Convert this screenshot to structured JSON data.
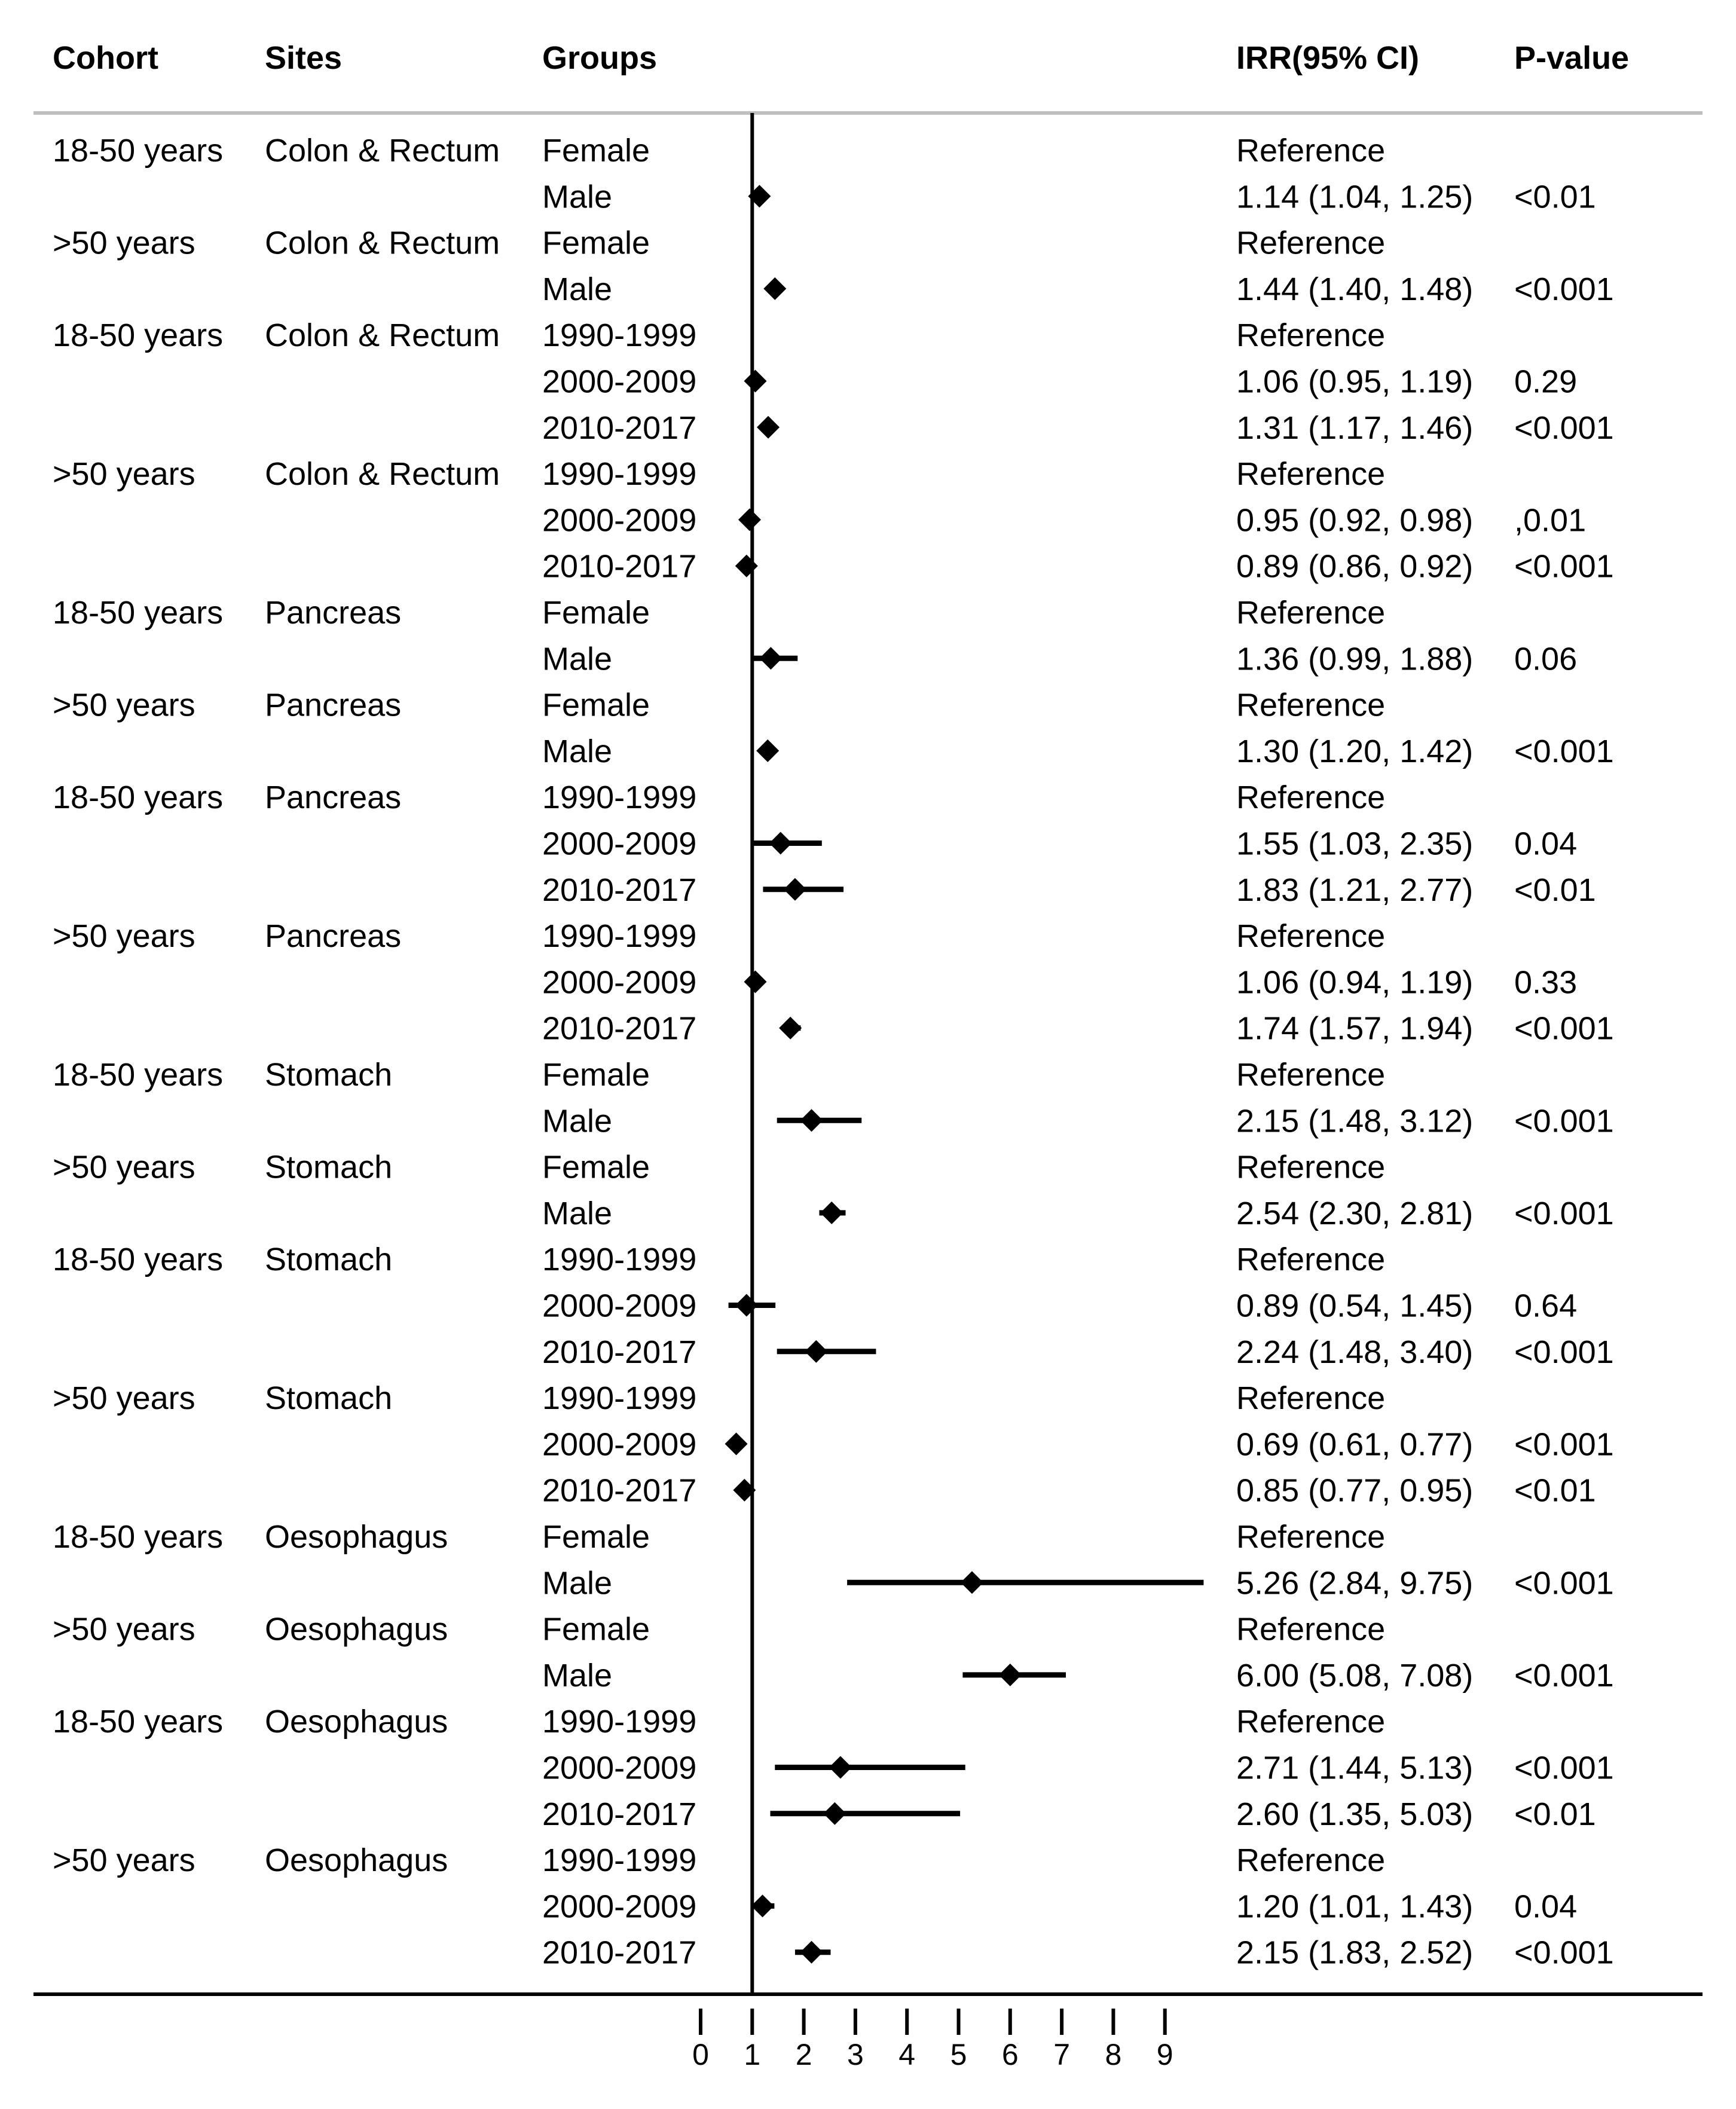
{
  "chart_data": {
    "type": "forest",
    "headers": {
      "cohort": "Cohort",
      "sites": "Sites",
      "groups": "Groups",
      "irr": "IRR(95% CI)",
      "pvalue": "P-value"
    },
    "x_ticks": [
      "0",
      "1",
      "2",
      "3",
      "4",
      "5",
      "6",
      "7",
      "8",
      "9"
    ],
    "xlim": [
      0,
      9
    ],
    "reference_line": 1,
    "rows": [
      {
        "cohort": "18-50 years",
        "site": "Colon & Rectum",
        "group": "Female",
        "irr_text": "Reference",
        "p": "",
        "est": null,
        "lo": null,
        "hi": null
      },
      {
        "cohort": "",
        "site": "",
        "group": "Male",
        "irr_text": "1.14 (1.04, 1.25)",
        "p": "<0.01",
        "est": 1.14,
        "lo": 1.04,
        "hi": 1.25
      },
      {
        "cohort": ">50 years",
        "site": "Colon & Rectum",
        "group": "Female",
        "irr_text": "Reference",
        "p": "",
        "est": null,
        "lo": null,
        "hi": null
      },
      {
        "cohort": "",
        "site": "",
        "group": "Male",
        "irr_text": "1.44 (1.40, 1.48)",
        "p": "<0.001",
        "est": 1.44,
        "lo": 1.4,
        "hi": 1.48
      },
      {
        "cohort": "18-50 years",
        "site": "Colon & Rectum",
        "group": "1990-1999",
        "irr_text": "Reference",
        "p": "",
        "est": null,
        "lo": null,
        "hi": null
      },
      {
        "cohort": "",
        "site": "",
        "group": "2000-2009",
        "irr_text": "1.06 (0.95, 1.19)",
        "p": "0.29",
        "est": 1.06,
        "lo": 0.95,
        "hi": 1.19
      },
      {
        "cohort": "",
        "site": "",
        "group": "2010-2017",
        "irr_text": "1.31 (1.17, 1.46)",
        "p": "<0.001",
        "est": 1.31,
        "lo": 1.17,
        "hi": 1.46
      },
      {
        "cohort": ">50 years",
        "site": "Colon & Rectum",
        "group": "1990-1999",
        "irr_text": "Reference",
        "p": "",
        "est": null,
        "lo": null,
        "hi": null
      },
      {
        "cohort": "",
        "site": "",
        "group": "2000-2009",
        "irr_text": "0.95 (0.92, 0.98)",
        "p": ",0.01",
        "est": 0.95,
        "lo": 0.92,
        "hi": 0.98
      },
      {
        "cohort": "",
        "site": "",
        "group": "2010-2017",
        "irr_text": "0.89 (0.86, 0.92)",
        "p": "<0.001",
        "est": 0.89,
        "lo": 0.86,
        "hi": 0.92
      },
      {
        "cohort": "18-50 years",
        "site": "Pancreas",
        "group": "Female",
        "irr_text": "Reference",
        "p": "",
        "est": null,
        "lo": null,
        "hi": null
      },
      {
        "cohort": "",
        "site": "",
        "group": "Male",
        "irr_text": "1.36 (0.99, 1.88)",
        "p": "0.06",
        "est": 1.36,
        "lo": 0.99,
        "hi": 1.88
      },
      {
        "cohort": ">50 years",
        "site": "Pancreas",
        "group": "Female",
        "irr_text": "Reference",
        "p": "",
        "est": null,
        "lo": null,
        "hi": null
      },
      {
        "cohort": "",
        "site": "",
        "group": "Male",
        "irr_text": "1.30 (1.20, 1.42)",
        "p": "<0.001",
        "est": 1.3,
        "lo": 1.2,
        "hi": 1.42
      },
      {
        "cohort": "18-50 years",
        "site": "Pancreas",
        "group": "1990-1999",
        "irr_text": "Reference",
        "p": "",
        "est": null,
        "lo": null,
        "hi": null
      },
      {
        "cohort": "",
        "site": "",
        "group": "2000-2009",
        "irr_text": "1.55 (1.03, 2.35)",
        "p": "0.04",
        "est": 1.55,
        "lo": 1.03,
        "hi": 2.35
      },
      {
        "cohort": "",
        "site": "",
        "group": "2010-2017",
        "irr_text": "1.83 (1.21, 2.77)",
        "p": "<0.01",
        "est": 1.83,
        "lo": 1.21,
        "hi": 2.77
      },
      {
        "cohort": ">50 years",
        "site": "Pancreas",
        "group": "1990-1999",
        "irr_text": "Reference",
        "p": "",
        "est": null,
        "lo": null,
        "hi": null
      },
      {
        "cohort": "",
        "site": "",
        "group": "2000-2009",
        "irr_text": "1.06 (0.94, 1.19)",
        "p": "0.33",
        "est": 1.06,
        "lo": 0.94,
        "hi": 1.19
      },
      {
        "cohort": "",
        "site": "",
        "group": "2010-2017",
        "irr_text": "1.74 (1.57, 1.94)",
        "p": "<0.001",
        "est": 1.74,
        "lo": 1.57,
        "hi": 1.94
      },
      {
        "cohort": "18-50 years",
        "site": "Stomach",
        "group": "Female",
        "irr_text": "Reference",
        "p": "",
        "est": null,
        "lo": null,
        "hi": null
      },
      {
        "cohort": "",
        "site": "",
        "group": "Male",
        "irr_text": "2.15 (1.48, 3.12)",
        "p": "<0.001",
        "est": 2.15,
        "lo": 1.48,
        "hi": 3.12
      },
      {
        "cohort": ">50 years",
        "site": "Stomach",
        "group": "Female",
        "irr_text": "Reference",
        "p": "",
        "est": null,
        "lo": null,
        "hi": null
      },
      {
        "cohort": "",
        "site": "",
        "group": "Male",
        "irr_text": "2.54 (2.30, 2.81)",
        "p": "<0.001",
        "est": 2.54,
        "lo": 2.3,
        "hi": 2.81
      },
      {
        "cohort": "18-50 years",
        "site": "Stomach",
        "group": "1990-1999",
        "irr_text": "Reference",
        "p": "",
        "est": null,
        "lo": null,
        "hi": null
      },
      {
        "cohort": "",
        "site": "",
        "group": "2000-2009",
        "irr_text": "0.89 (0.54, 1.45)",
        "p": "0.64",
        "est": 0.89,
        "lo": 0.54,
        "hi": 1.45
      },
      {
        "cohort": "",
        "site": "",
        "group": "2010-2017",
        "irr_text": "2.24 (1.48, 3.40)",
        "p": "<0.001",
        "est": 2.24,
        "lo": 1.48,
        "hi": 3.4
      },
      {
        "cohort": ">50 years",
        "site": "Stomach",
        "group": "1990-1999",
        "irr_text": "Reference",
        "p": "",
        "est": null,
        "lo": null,
        "hi": null
      },
      {
        "cohort": "",
        "site": "",
        "group": "2000-2009",
        "irr_text": "0.69 (0.61, 0.77)",
        "p": "<0.001",
        "est": 0.69,
        "lo": 0.61,
        "hi": 0.77
      },
      {
        "cohort": "",
        "site": "",
        "group": "2010-2017",
        "irr_text": "0.85 (0.77, 0.95)",
        "p": "<0.01",
        "est": 0.85,
        "lo": 0.77,
        "hi": 0.95
      },
      {
        "cohort": "18-50 years",
        "site": "Oesophagus",
        "group": "Female",
        "irr_text": "Reference",
        "p": "",
        "est": null,
        "lo": null,
        "hi": null
      },
      {
        "cohort": "",
        "site": "",
        "group": "Male",
        "irr_text": "5.26 (2.84, 9.75)",
        "p": "<0.001",
        "est": 5.26,
        "lo": 2.84,
        "hi": 9.75
      },
      {
        "cohort": ">50 years",
        "site": "Oesophagus",
        "group": "Female",
        "irr_text": "Reference",
        "p": "",
        "est": null,
        "lo": null,
        "hi": null
      },
      {
        "cohort": "",
        "site": "",
        "group": "Male",
        "irr_text": "6.00 (5.08, 7.08)",
        "p": "<0.001",
        "est": 6.0,
        "lo": 5.08,
        "hi": 7.08
      },
      {
        "cohort": "18-50 years",
        "site": "Oesophagus",
        "group": "1990-1999",
        "irr_text": "Reference",
        "p": "",
        "est": null,
        "lo": null,
        "hi": null
      },
      {
        "cohort": "",
        "site": "",
        "group": "2000-2009",
        "irr_text": "2.71 (1.44, 5.13)",
        "p": "<0.001",
        "est": 2.71,
        "lo": 1.44,
        "hi": 5.13
      },
      {
        "cohort": "",
        "site": "",
        "group": "2010-2017",
        "irr_text": "2.60 (1.35, 5.03)",
        "p": "<0.01",
        "est": 2.6,
        "lo": 1.35,
        "hi": 5.03
      },
      {
        "cohort": ">50 years",
        "site": "Oesophagus",
        "group": "1990-1999",
        "irr_text": "Reference",
        "p": "",
        "est": null,
        "lo": null,
        "hi": null
      },
      {
        "cohort": "",
        "site": "",
        "group": "2000-2009",
        "irr_text": "1.20 (1.01, 1.43)",
        "p": "0.04",
        "est": 1.2,
        "lo": 1.01,
        "hi": 1.43
      },
      {
        "cohort": "",
        "site": "",
        "group": "2010-2017",
        "irr_text": "2.15 (1.83, 2.52)",
        "p": "<0.001",
        "est": 2.15,
        "lo": 1.83,
        "hi": 2.52
      }
    ]
  }
}
